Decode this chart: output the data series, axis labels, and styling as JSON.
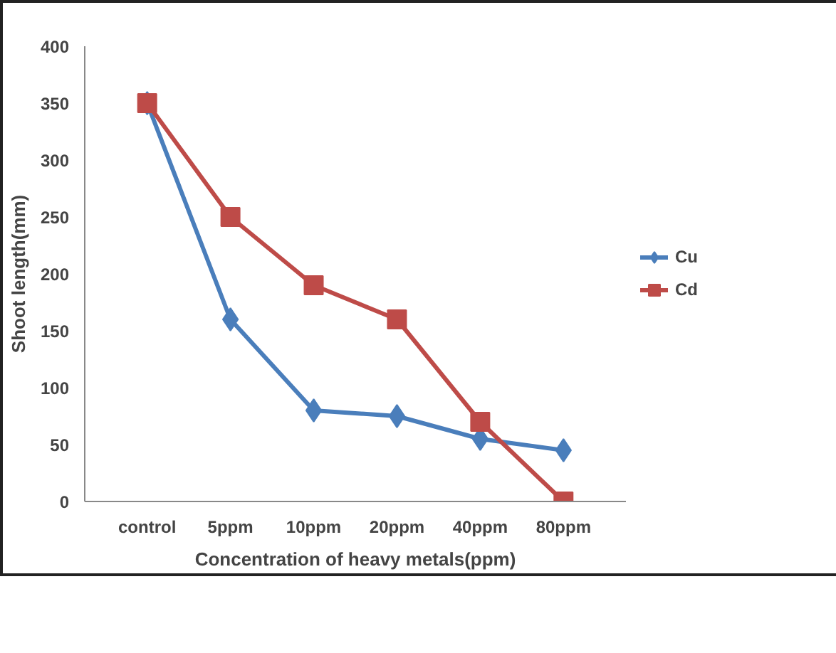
{
  "chart_data": {
    "type": "line",
    "xlabel": "Concentration of heavy metals(ppm)",
    "ylabel": "Shoot length(mm)",
    "categories": [
      "control",
      "5ppm",
      "10ppm",
      "20ppm",
      "40ppm",
      "80ppm"
    ],
    "ylim": [
      0,
      400
    ],
    "yticks": [
      0,
      50,
      100,
      150,
      200,
      250,
      300,
      350,
      400
    ],
    "legend": "right",
    "series": [
      {
        "name": "Cu",
        "color": "#4a7ebb",
        "marker": "diamond",
        "values": [
          350,
          160,
          80,
          75,
          55,
          45
        ]
      },
      {
        "name": "Cd",
        "color": "#be4b48",
        "marker": "square",
        "values": [
          350,
          250,
          190,
          160,
          70,
          0
        ]
      }
    ]
  }
}
